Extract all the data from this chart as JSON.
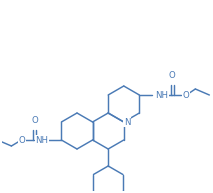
{
  "bg_color": "#ffffff",
  "bond_color": "#4a7ab5",
  "text_color": "#4a7ab5",
  "figsize": [
    2.1,
    1.89
  ],
  "dpi": 100,
  "lw": 1.05,
  "fs": 6.2
}
